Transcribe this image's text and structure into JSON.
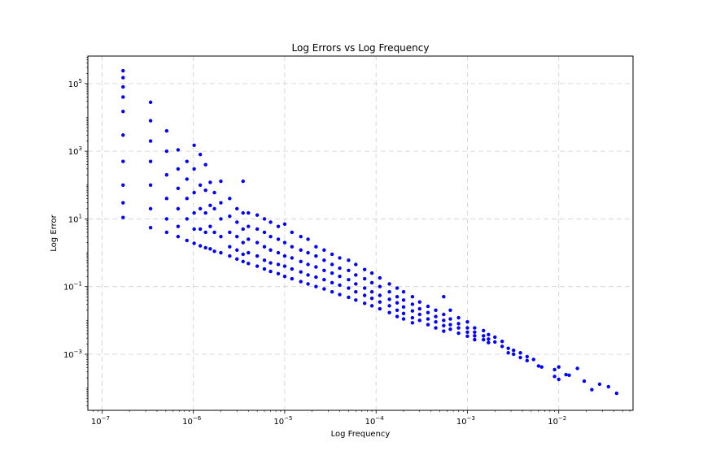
{
  "chart_data": {
    "type": "scatter",
    "title": "Log Errors vs Log Frequency",
    "xlabel": "Log Frequency",
    "ylabel": "Log Error",
    "xscale": "log",
    "yscale": "log",
    "xlim": [
      7e-08,
      0.065
    ],
    "ylim": [
      2.2e-05,
      650000
    ],
    "x_ticks": [
      {
        "base": "10",
        "exp": "−7",
        "value": 1e-07
      },
      {
        "base": "10",
        "exp": "−6",
        "value": 1e-06
      },
      {
        "base": "10",
        "exp": "−5",
        "value": 1e-05
      },
      {
        "base": "10",
        "exp": "−4",
        "value": 0.0001
      },
      {
        "base": "10",
        "exp": "−3",
        "value": 0.001
      },
      {
        "base": "10",
        "exp": "−2",
        "value": 0.01
      }
    ],
    "y_ticks": [
      {
        "base": "10",
        "exp": "5",
        "value": 100000.0
      },
      {
        "base": "10",
        "exp": "3",
        "value": 1000.0
      },
      {
        "base": "10",
        "exp": "1",
        "value": 10.0
      },
      {
        "base": "10",
        "exp": "−1",
        "value": 0.1
      },
      {
        "base": "10",
        "exp": "−3",
        "value": 0.001
      }
    ],
    "grid": true,
    "marker_color": "#0000ff",
    "series": [
      {
        "values": [
          [
            1.7e-07,
            240000.0
          ],
          [
            1.7e-07,
            150000.0
          ],
          [
            1.7e-07,
            80000.0
          ],
          [
            1.7e-07,
            40000.0
          ],
          [
            1.7e-07,
            15000.0
          ],
          [
            1.7e-07,
            3000
          ],
          [
            1.7e-07,
            500
          ],
          [
            1.7e-07,
            100
          ],
          [
            1.7e-07,
            30
          ],
          [
            1.7e-07,
            11
          ],
          [
            3.4e-07,
            28000.0
          ],
          [
            3.4e-07,
            8000
          ],
          [
            3.4e-07,
            2000
          ],
          [
            3.4e-07,
            500
          ],
          [
            3.4e-07,
            100
          ],
          [
            3.4e-07,
            20
          ],
          [
            3.4e-07,
            5.5
          ],
          [
            5.1e-07,
            4000
          ],
          [
            5.1e-07,
            1000
          ],
          [
            5.1e-07,
            200
          ],
          [
            5.1e-07,
            40
          ],
          [
            5.1e-07,
            10
          ],
          [
            5.1e-07,
            4
          ],
          [
            6.8e-07,
            1100
          ],
          [
            6.8e-07,
            300
          ],
          [
            6.8e-07,
            80
          ],
          [
            6.8e-07,
            20
          ],
          [
            6.8e-07,
            6
          ],
          [
            6.8e-07,
            3
          ],
          [
            8.5e-07,
            500
          ],
          [
            8.5e-07,
            150
          ],
          [
            8.5e-07,
            40
          ],
          [
            8.5e-07,
            10
          ],
          [
            8.5e-07,
            2.3
          ],
          [
            1.02e-06,
            1500
          ],
          [
            1.02e-06,
            300
          ],
          [
            1.02e-06,
            60
          ],
          [
            1.02e-06,
            15
          ],
          [
            1.02e-06,
            5
          ],
          [
            1.02e-06,
            1.9
          ],
          [
            1.19e-06,
            800
          ],
          [
            1.19e-06,
            100
          ],
          [
            1.19e-06,
            20
          ],
          [
            1.19e-06,
            5
          ],
          [
            1.19e-06,
            1.6
          ],
          [
            1.36e-06,
            400
          ],
          [
            1.36e-06,
            70
          ],
          [
            1.36e-06,
            15
          ],
          [
            1.36e-06,
            4
          ],
          [
            1.36e-06,
            1.4
          ],
          [
            1.53e-06,
            120
          ],
          [
            1.53e-06,
            25
          ],
          [
            1.53e-06,
            6
          ],
          [
            1.53e-06,
            1.3
          ],
          [
            1.7e-06,
            60
          ],
          [
            1.7e-06,
            20
          ],
          [
            1.7e-06,
            4
          ],
          [
            1.7e-06,
            1.1
          ],
          [
            2e-06,
            130
          ],
          [
            2e-06,
            30
          ],
          [
            2e-06,
            10
          ],
          [
            2e-06,
            3
          ],
          [
            2e-06,
            1.0
          ],
          [
            2.5e-06,
            40
          ],
          [
            2.5e-06,
            12
          ],
          [
            2.5e-06,
            4
          ],
          [
            2.5e-06,
            1.5
          ],
          [
            2.5e-06,
            0.8
          ],
          [
            3e-06,
            20
          ],
          [
            3e-06,
            8
          ],
          [
            3e-06,
            3
          ],
          [
            3e-06,
            1.2
          ],
          [
            3e-06,
            0.65
          ],
          [
            3.5e-06,
            130
          ],
          [
            3.5e-06,
            15
          ],
          [
            3.5e-06,
            5
          ],
          [
            3.5e-06,
            2
          ],
          [
            3.5e-06,
            0.9
          ],
          [
            3.5e-06,
            0.55
          ],
          [
            4e-06,
            15
          ],
          [
            4e-06,
            6
          ],
          [
            4e-06,
            2.5
          ],
          [
            4e-06,
            1.0
          ],
          [
            4e-06,
            0.48
          ],
          [
            5e-06,
            13
          ],
          [
            5e-06,
            5
          ],
          [
            5e-06,
            2
          ],
          [
            5e-06,
            0.8
          ],
          [
            5e-06,
            0.4
          ],
          [
            6e-06,
            10
          ],
          [
            6e-06,
            4
          ],
          [
            6e-06,
            1.5
          ],
          [
            6e-06,
            0.6
          ],
          [
            6e-06,
            0.33
          ],
          [
            7e-06,
            8
          ],
          [
            7e-06,
            3
          ],
          [
            7e-06,
            1.2
          ],
          [
            7e-06,
            0.5
          ],
          [
            7e-06,
            0.28
          ],
          [
            8.5e-06,
            6
          ],
          [
            8.5e-06,
            2.5
          ],
          [
            8.5e-06,
            1.0
          ],
          [
            8.5e-06,
            0.45
          ],
          [
            8.5e-06,
            0.24
          ],
          [
            1e-05,
            7
          ],
          [
            1e-05,
            2
          ],
          [
            1e-05,
            0.8
          ],
          [
            1e-05,
            0.4
          ],
          [
            1e-05,
            0.2
          ],
          [
            1.2e-05,
            4
          ],
          [
            1.2e-05,
            1.5
          ],
          [
            1.2e-05,
            0.7
          ],
          [
            1.2e-05,
            0.33
          ],
          [
            1.2e-05,
            0.17
          ],
          [
            1.5e-05,
            3
          ],
          [
            1.5e-05,
            1.2
          ],
          [
            1.5e-05,
            0.55
          ],
          [
            1.5e-05,
            0.27
          ],
          [
            1.5e-05,
            0.14
          ],
          [
            1.8e-05,
            2.5
          ],
          [
            1.8e-05,
            1.0
          ],
          [
            1.8e-05,
            0.45
          ],
          [
            1.8e-05,
            0.22
          ],
          [
            1.8e-05,
            0.12
          ],
          [
            2.2e-05,
            1.5
          ],
          [
            2.2e-05,
            0.8
          ],
          [
            2.2e-05,
            0.38
          ],
          [
            2.2e-05,
            0.19
          ],
          [
            2.2e-05,
            0.1
          ],
          [
            2.7e-05,
            1.2
          ],
          [
            2.7e-05,
            0.6
          ],
          [
            2.7e-05,
            0.3
          ],
          [
            2.7e-05,
            0.16
          ],
          [
            2.7e-05,
            0.085
          ],
          [
            3.3e-05,
            0.9
          ],
          [
            3.3e-05,
            0.45
          ],
          [
            3.3e-05,
            0.25
          ],
          [
            3.3e-05,
            0.13
          ],
          [
            3.3e-05,
            0.07
          ],
          [
            4e-05,
            0.7
          ],
          [
            4e-05,
            0.35
          ],
          [
            4e-05,
            0.2
          ],
          [
            4e-05,
            0.11
          ],
          [
            4e-05,
            0.058
          ],
          [
            5e-05,
            0.6
          ],
          [
            5e-05,
            0.3
          ],
          [
            5e-05,
            0.16
          ],
          [
            5e-05,
            0.09
          ],
          [
            5e-05,
            0.048
          ],
          [
            6e-05,
            0.45
          ],
          [
            6e-05,
            0.22
          ],
          [
            6e-05,
            0.12
          ],
          [
            6e-05,
            0.07
          ],
          [
            6e-05,
            0.04
          ],
          [
            7.5e-05,
            0.32
          ],
          [
            7.5e-05,
            0.17
          ],
          [
            7.5e-05,
            0.09
          ],
          [
            7.5e-05,
            0.055
          ],
          [
            7.5e-05,
            0.032
          ],
          [
            9e-05,
            0.25
          ],
          [
            9e-05,
            0.13
          ],
          [
            9e-05,
            0.07
          ],
          [
            9e-05,
            0.045
          ],
          [
            9e-05,
            0.027
          ],
          [
            0.00011,
            0.18
          ],
          [
            0.00011,
            0.1
          ],
          [
            0.00011,
            0.055
          ],
          [
            0.00011,
            0.035
          ],
          [
            0.00011,
            0.022
          ],
          [
            0.00014,
            0.12
          ],
          [
            0.00014,
            0.07
          ],
          [
            0.00014,
            0.042
          ],
          [
            0.00014,
            0.027
          ],
          [
            0.00014,
            0.017
          ],
          [
            0.00017,
            0.09
          ],
          [
            0.00017,
            0.05
          ],
          [
            0.00017,
            0.033
          ],
          [
            0.00017,
            0.02
          ],
          [
            0.00017,
            0.013
          ],
          [
            0.0002,
            0.07
          ],
          [
            0.0002,
            0.04
          ],
          [
            0.0002,
            0.025
          ],
          [
            0.0002,
            0.016
          ],
          [
            0.0002,
            0.011
          ],
          [
            0.00025,
            0.05
          ],
          [
            0.00025,
            0.03
          ],
          [
            0.00025,
            0.019
          ],
          [
            0.00025,
            0.012
          ],
          [
            0.00025,
            0.0085
          ],
          [
            0.0003,
            0.035
          ],
          [
            0.0003,
            0.022
          ],
          [
            0.0003,
            0.015
          ],
          [
            0.0003,
            0.01
          ],
          [
            0.00037,
            0.026
          ],
          [
            0.00037,
            0.017
          ],
          [
            0.00037,
            0.011
          ],
          [
            0.00037,
            0.0075
          ],
          [
            0.00045,
            0.02
          ],
          [
            0.00045,
            0.013
          ],
          [
            0.00045,
            0.009
          ],
          [
            0.00045,
            0.006
          ],
          [
            0.00055,
            0.05
          ],
          [
            0.00055,
            0.015
          ],
          [
            0.00055,
            0.01
          ],
          [
            0.00055,
            0.007
          ],
          [
            0.00055,
            0.0048
          ],
          [
            0.00065,
            0.02
          ],
          [
            0.00065,
            0.011
          ],
          [
            0.00065,
            0.0075
          ],
          [
            0.00065,
            0.0055
          ],
          [
            0.0008,
            0.012
          ],
          [
            0.0008,
            0.008
          ],
          [
            0.0008,
            0.006
          ],
          [
            0.0008,
            0.0042
          ],
          [
            0.001,
            0.009
          ],
          [
            0.001,
            0.006
          ],
          [
            0.001,
            0.0045
          ],
          [
            0.001,
            0.0034
          ],
          [
            0.0012,
            0.006
          ],
          [
            0.0012,
            0.0045
          ],
          [
            0.0012,
            0.0035
          ],
          [
            0.0012,
            0.0027
          ],
          [
            0.0015,
            0.005
          ],
          [
            0.0015,
            0.0035
          ],
          [
            0.0015,
            0.0027
          ],
          [
            0.0017,
            0.0038
          ],
          [
            0.0017,
            0.0028
          ],
          [
            0.0017,
            0.0022
          ],
          [
            0.002,
            0.0032
          ],
          [
            0.002,
            0.0023
          ],
          [
            0.0024,
            0.0024
          ],
          [
            0.0024,
            0.0017
          ],
          [
            0.0028,
            0.0015
          ],
          [
            0.0028,
            0.0011
          ],
          [
            0.0032,
            0.0013
          ],
          [
            0.0032,
            0.001
          ],
          [
            0.0038,
            0.0011
          ],
          [
            0.0038,
            0.0008
          ],
          [
            0.0045,
            0.00085
          ],
          [
            0.0045,
            0.00065
          ],
          [
            0.0053,
            0.0007
          ],
          [
            0.006,
            0.00045
          ],
          [
            0.0065,
            0.00042
          ],
          [
            0.009,
            0.00035
          ],
          [
            0.009,
            0.00022
          ],
          [
            0.01,
            0.00042
          ],
          [
            0.01,
            0.00018
          ],
          [
            0.012,
            0.00025
          ],
          [
            0.013,
            0.00024
          ],
          [
            0.016,
            0.00038
          ],
          [
            0.019,
            0.00016
          ],
          [
            0.023,
            9e-05
          ],
          [
            0.028,
            0.00013
          ],
          [
            0.035,
            0.00011
          ],
          [
            0.043,
            7e-05
          ]
        ]
      }
    ]
  }
}
